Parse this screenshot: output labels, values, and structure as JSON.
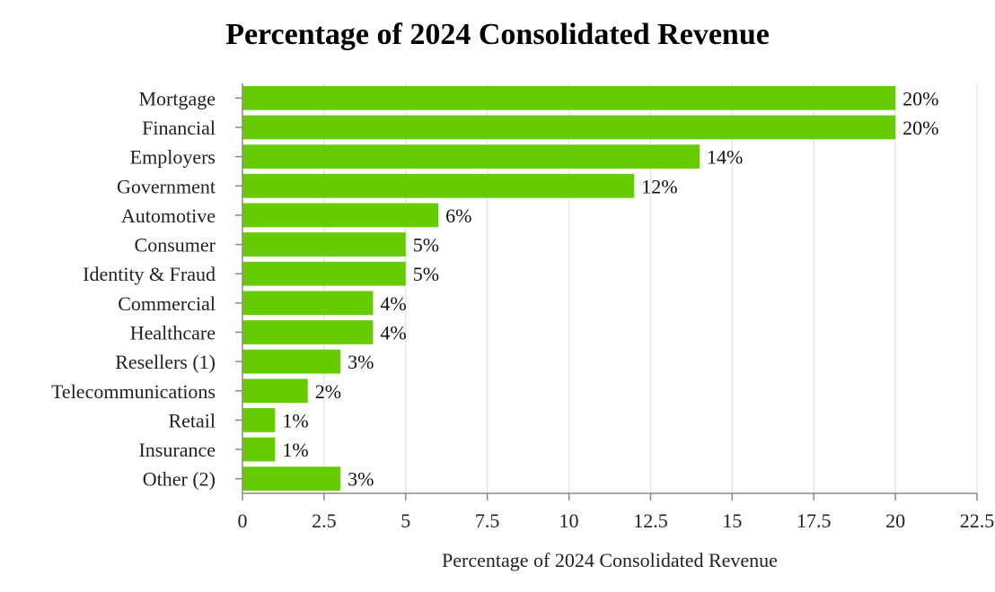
{
  "chart_data": {
    "type": "bar",
    "orientation": "horizontal",
    "title": "Percentage of 2024 Consolidated Revenue",
    "xlabel": "Percentage of 2024 Consolidated Revenue",
    "ylabel": "",
    "categories": [
      "Mortgage",
      "Financial",
      "Employers",
      "Government",
      "Automotive",
      "Consumer",
      "Identity & Fraud",
      "Commercial",
      "Healthcare",
      "Resellers (1)",
      "Telecommunications",
      "Retail",
      "Insurance",
      "Other (2)"
    ],
    "values": [
      20,
      20,
      14,
      12,
      6,
      5,
      5,
      4,
      4,
      3,
      2,
      1,
      1,
      3
    ],
    "data_labels": [
      "20%",
      "20%",
      "14%",
      "12%",
      "6%",
      "5%",
      "5%",
      "4%",
      "4%",
      "3%",
      "2%",
      "1%",
      "1%",
      "3%"
    ],
    "xlim": [
      0,
      22.5
    ],
    "xticks": [
      0,
      2.5,
      5,
      7.5,
      10,
      12.5,
      15,
      17.5,
      20,
      22.5
    ],
    "xtick_labels": [
      "0",
      "2.5",
      "5",
      "7.5",
      "10",
      "12.5",
      "15",
      "17.5",
      "20",
      "22.5"
    ],
    "grid": "vertical",
    "legend": "none",
    "colors": {
      "bar": "#66cc00",
      "grid": "#e6e6e6",
      "axis": "#888888"
    }
  }
}
